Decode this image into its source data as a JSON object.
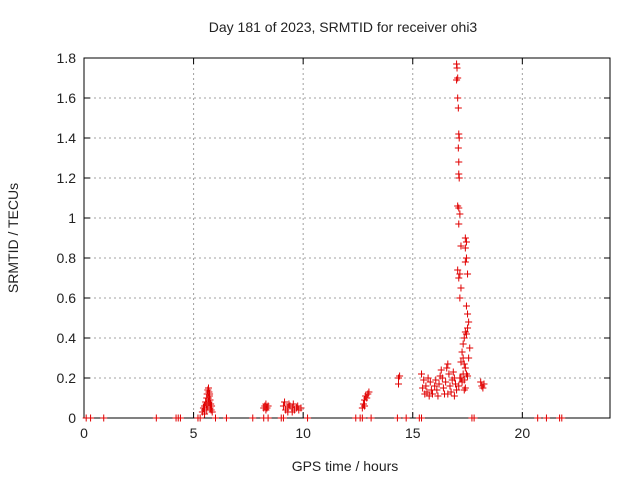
{
  "chart_data": {
    "type": "scatter",
    "title": "Day 181 of 2023, SRMTID for receiver ohi3",
    "xlabel": "GPS time / hours",
    "ylabel": "SRMTID / TECUs",
    "xlim": [
      0,
      24
    ],
    "ylim": [
      0,
      1.8
    ],
    "xticks": [
      0,
      5,
      10,
      15,
      20
    ],
    "yticks": [
      0,
      0.2,
      0.4,
      0.6,
      0.8,
      1,
      1.2,
      1.4,
      1.6,
      1.8
    ],
    "xtick_labels": [
      "0",
      "5",
      "10",
      "15",
      "20"
    ],
    "ytick_labels": [
      "0",
      "0.2",
      "0.4",
      "0.6",
      "0.8",
      "1",
      "1.2",
      "1.4",
      "1.6",
      "1.8"
    ],
    "grid": true,
    "marker": "+",
    "color": "#e00000",
    "series": [
      {
        "name": "SRMTID",
        "points": [
          [
            0.1,
            0
          ],
          [
            0.3,
            0
          ],
          [
            0.9,
            0
          ],
          [
            3.3,
            0
          ],
          [
            4.2,
            0
          ],
          [
            4.3,
            0
          ],
          [
            4.4,
            0
          ],
          [
            5.2,
            0
          ],
          [
            5.3,
            0
          ],
          [
            6.0,
            0
          ],
          [
            6.5,
            0
          ],
          [
            7.7,
            0
          ],
          [
            8.2,
            0
          ],
          [
            8.4,
            0
          ],
          [
            9.0,
            0
          ],
          [
            9.1,
            0
          ],
          [
            10.2,
            0
          ],
          [
            12.4,
            0
          ],
          [
            12.6,
            0
          ],
          [
            12.7,
            0
          ],
          [
            13.1,
            0
          ],
          [
            14.3,
            0
          ],
          [
            14.7,
            0
          ],
          [
            15.3,
            0
          ],
          [
            15.4,
            0
          ],
          [
            17.7,
            0
          ],
          [
            17.8,
            0
          ],
          [
            20.7,
            0
          ],
          [
            21.1,
            0
          ],
          [
            21.7,
            0
          ],
          [
            21.8,
            0
          ],
          [
            5.4,
            0.03
          ],
          [
            5.45,
            0.05
          ],
          [
            5.5,
            0.06
          ],
          [
            5.5,
            0.02
          ],
          [
            5.55,
            0.08
          ],
          [
            5.6,
            0.1
          ],
          [
            5.6,
            0.04
          ],
          [
            5.62,
            0.12
          ],
          [
            5.65,
            0.14
          ],
          [
            5.65,
            0.06
          ],
          [
            5.68,
            0.15
          ],
          [
            5.7,
            0.13
          ],
          [
            5.7,
            0.08
          ],
          [
            5.72,
            0.11
          ],
          [
            5.75,
            0.09
          ],
          [
            5.75,
            0.05
          ],
          [
            5.78,
            0.07
          ],
          [
            5.8,
            0.04
          ],
          [
            5.82,
            0.06
          ],
          [
            5.85,
            0.03
          ],
          [
            5.5,
            0.04
          ],
          [
            5.58,
            0.07
          ],
          [
            5.67,
            0.1
          ],
          [
            5.73,
            0.12
          ],
          [
            8.2,
            0.05
          ],
          [
            8.25,
            0.06
          ],
          [
            8.3,
            0.07
          ],
          [
            8.35,
            0.05
          ],
          [
            8.4,
            0.06
          ],
          [
            8.3,
            0.04
          ],
          [
            9.1,
            0.06
          ],
          [
            9.15,
            0.08
          ],
          [
            9.2,
            0.04
          ],
          [
            9.3,
            0.05
          ],
          [
            9.35,
            0.07
          ],
          [
            9.4,
            0.06
          ],
          [
            9.5,
            0.05
          ],
          [
            9.55,
            0.07
          ],
          [
            9.6,
            0.04
          ],
          [
            9.7,
            0.05
          ],
          [
            9.75,
            0.06
          ],
          [
            9.8,
            0.04
          ],
          [
            9.9,
            0.05
          ],
          [
            9.3,
            0.03
          ],
          [
            9.5,
            0.03
          ],
          [
            12.7,
            0.05
          ],
          [
            12.75,
            0.07
          ],
          [
            12.8,
            0.09
          ],
          [
            12.85,
            0.11
          ],
          [
            12.9,
            0.1
          ],
          [
            12.95,
            0.12
          ],
          [
            13.0,
            0.13
          ],
          [
            12.8,
            0.06
          ],
          [
            14.35,
            0.2
          ],
          [
            14.35,
            0.17
          ],
          [
            14.4,
            0.21
          ],
          [
            15.4,
            0.22
          ],
          [
            15.5,
            0.19
          ],
          [
            15.6,
            0.16
          ],
          [
            15.65,
            0.13
          ],
          [
            15.7,
            0.2
          ],
          [
            15.8,
            0.18
          ],
          [
            15.85,
            0.14
          ],
          [
            15.9,
            0.12
          ],
          [
            16.0,
            0.16
          ],
          [
            16.05,
            0.19
          ],
          [
            16.1,
            0.14
          ],
          [
            16.2,
            0.17
          ],
          [
            16.25,
            0.21
          ],
          [
            16.3,
            0.24
          ],
          [
            16.35,
            0.2
          ],
          [
            16.4,
            0.15
          ],
          [
            16.45,
            0.12
          ],
          [
            16.5,
            0.18
          ],
          [
            16.55,
            0.25
          ],
          [
            16.6,
            0.27
          ],
          [
            16.65,
            0.22
          ],
          [
            16.7,
            0.16
          ],
          [
            16.75,
            0.13
          ],
          [
            16.8,
            0.19
          ],
          [
            16.85,
            0.23
          ],
          [
            16.9,
            0.2
          ],
          [
            16.95,
            0.17
          ],
          [
            17.0,
            0.14
          ],
          [
            17.1,
            0.16
          ],
          [
            17.2,
            0.2
          ],
          [
            17.3,
            0.22
          ],
          [
            17.35,
            0.19
          ],
          [
            17.4,
            0.15
          ],
          [
            15.45,
            0.15
          ],
          [
            15.55,
            0.12
          ],
          [
            15.75,
            0.11
          ],
          [
            16.15,
            0.11
          ],
          [
            16.6,
            0.12
          ],
          [
            16.9,
            0.11
          ],
          [
            17.0,
            1.77
          ],
          [
            17.02,
            1.75
          ],
          [
            17.05,
            1.7
          ],
          [
            17.0,
            1.69
          ],
          [
            17.05,
            1.6
          ],
          [
            17.08,
            1.55
          ],
          [
            17.1,
            1.42
          ],
          [
            17.12,
            1.4
          ],
          [
            17.08,
            1.35
          ],
          [
            17.1,
            1.28
          ],
          [
            17.1,
            1.22
          ],
          [
            17.12,
            1.2
          ],
          [
            17.05,
            1.06
          ],
          [
            17.1,
            1.05
          ],
          [
            17.15,
            1.02
          ],
          [
            17.1,
            0.97
          ],
          [
            17.2,
            0.86
          ],
          [
            17.15,
            0.72
          ],
          [
            17.05,
            0.74
          ],
          [
            17.1,
            0.7
          ],
          [
            17.2,
            0.65
          ],
          [
            17.15,
            0.6
          ],
          [
            17.4,
            0.9
          ],
          [
            17.45,
            0.88
          ],
          [
            17.4,
            0.85
          ],
          [
            17.45,
            0.8
          ],
          [
            17.4,
            0.78
          ],
          [
            17.5,
            0.72
          ],
          [
            17.45,
            0.56
          ],
          [
            17.5,
            0.52
          ],
          [
            17.55,
            0.48
          ],
          [
            17.5,
            0.45
          ],
          [
            17.45,
            0.42
          ],
          [
            17.4,
            0.43
          ],
          [
            17.35,
            0.4
          ],
          [
            17.3,
            0.37
          ],
          [
            17.25,
            0.33
          ],
          [
            17.3,
            0.3
          ],
          [
            17.35,
            0.27
          ],
          [
            17.4,
            0.25
          ],
          [
            17.45,
            0.22
          ],
          [
            17.5,
            0.21
          ],
          [
            17.55,
            0.3
          ],
          [
            17.6,
            0.35
          ],
          [
            17.2,
            0.28
          ],
          [
            17.15,
            0.2
          ],
          [
            17.25,
            0.18
          ],
          [
            17.35,
            0.14
          ],
          [
            18.1,
            0.18
          ],
          [
            18.15,
            0.16
          ],
          [
            18.2,
            0.15
          ],
          [
            18.25,
            0.17
          ]
        ]
      }
    ]
  }
}
